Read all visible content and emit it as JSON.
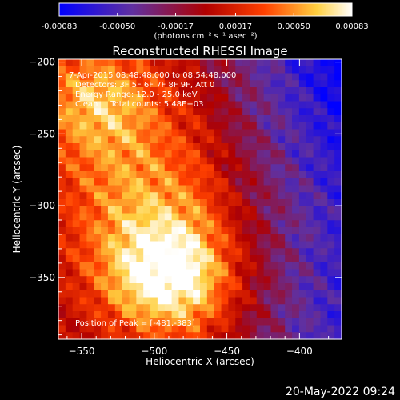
{
  "colorbar": {
    "tick_labels": [
      "-0.00083",
      "-0.00050",
      "-0.00017",
      "0.00017",
      "0.00050",
      "0.00083"
    ],
    "tick_values": [
      -0.00083,
      -0.0005,
      -0.00017,
      0.00017,
      0.0005,
      0.00083
    ],
    "range": [
      -0.00083,
      0.00083
    ],
    "unit_label": "(photons cm⁻² s⁻¹ asec⁻²)"
  },
  "header": {
    "time_range": "7-Apr-2015 08:48:48.000 to 08:54:48.000",
    "detectors": "Detectors: 3F 5F 6F 7F 8F 9F, Att 0",
    "energy": "Energy Range: 12.0 - 25.0 keV",
    "method": "Clean     Total counts: 5.48E+03",
    "peak": "Position of Peak = [-481,-383]"
  },
  "footer_date": "20-May-2022 09:24",
  "colors": {
    "background": "#000000",
    "colormap": [
      "#0000ff",
      "#6030a0",
      "#b00000",
      "#ff4000",
      "#ffd040",
      "#ffffff"
    ]
  },
  "chart_data": {
    "type": "heatmap",
    "title": "Reconstructed RHESSI Image",
    "xlabel": "Heliocentric X (arcsec)",
    "ylabel": "Heliocentric Y (arcsec)",
    "xlim": [
      -566,
      -371
    ],
    "ylim": [
      -393,
      -198
    ],
    "xticks": [
      -550,
      -500,
      -450,
      -400
    ],
    "yticks": [
      -200,
      -250,
      -300,
      -350
    ],
    "xtick_labels": [
      "−550",
      "−500",
      "−450",
      "−400"
    ],
    "ytick_labels": [
      "−200",
      "−250",
      "−300",
      "−350"
    ],
    "grid": false,
    "peak": [
      -481,
      -383
    ],
    "sources": [
      {
        "x": -490,
        "y": -350,
        "value": 0.00083
      },
      {
        "x": -540,
        "y": -225,
        "value": 0.00055
      }
    ]
  }
}
